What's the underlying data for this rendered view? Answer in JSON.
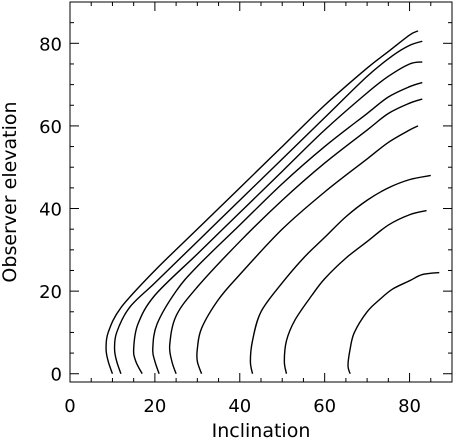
{
  "chart_data": {
    "type": "line",
    "title": "",
    "xlabel": "Inclination",
    "ylabel": "Observer elevation",
    "xlim": [
      0,
      90
    ],
    "ylim": [
      -2,
      90
    ],
    "xticks": [
      0,
      20,
      40,
      60,
      80
    ],
    "yticks": [
      0,
      20,
      40,
      60,
      80
    ],
    "grid": false,
    "legend": "none",
    "line_color": "#000000",
    "series": [
      {
        "points": [
          [
            10,
            0
          ],
          [
            9,
            3
          ],
          [
            8.5,
            6
          ],
          [
            9,
            10
          ],
          [
            12,
            16
          ],
          [
            20,
            25
          ],
          [
            30,
            35
          ],
          [
            40,
            45
          ],
          [
            50,
            55
          ],
          [
            60,
            65
          ],
          [
            70,
            74
          ],
          [
            75,
            78
          ],
          [
            80,
            82
          ],
          [
            82,
            83
          ]
        ]
      },
      {
        "points": [
          [
            12,
            0
          ],
          [
            11,
            3
          ],
          [
            10.5,
            6
          ],
          [
            11,
            10
          ],
          [
            14,
            16
          ],
          [
            20,
            22
          ],
          [
            30,
            32
          ],
          [
            40,
            42
          ],
          [
            50,
            52
          ],
          [
            60,
            62
          ],
          [
            70,
            72
          ],
          [
            76,
            77
          ],
          [
            80,
            79.5
          ],
          [
            83,
            80.5
          ]
        ]
      },
      {
        "points": [
          [
            17,
            0
          ],
          [
            15.5,
            3
          ],
          [
            15,
            6
          ],
          [
            16,
            12
          ],
          [
            20,
            19
          ],
          [
            30,
            29
          ],
          [
            40,
            39
          ],
          [
            50,
            49
          ],
          [
            60,
            59
          ],
          [
            70,
            68
          ],
          [
            75,
            72
          ],
          [
            80,
            75
          ],
          [
            83,
            75.5
          ]
        ]
      },
      {
        "points": [
          [
            21,
            0
          ],
          [
            20,
            3
          ],
          [
            19.5,
            6
          ],
          [
            20.5,
            12
          ],
          [
            25,
            20
          ],
          [
            30,
            26
          ],
          [
            40,
            36
          ],
          [
            50,
            46
          ],
          [
            60,
            55
          ],
          [
            70,
            63
          ],
          [
            75,
            67
          ],
          [
            80,
            69.5
          ],
          [
            83,
            70.5
          ]
        ]
      },
      {
        "points": [
          [
            25,
            0
          ],
          [
            24,
            3
          ],
          [
            23.5,
            7
          ],
          [
            25,
            14
          ],
          [
            30,
            21
          ],
          [
            40,
            32
          ],
          [
            50,
            42
          ],
          [
            60,
            51
          ],
          [
            70,
            59
          ],
          [
            75,
            63
          ],
          [
            80,
            65.5
          ],
          [
            83,
            66.5
          ]
        ]
      },
      {
        "points": [
          [
            31,
            0
          ],
          [
            30,
            3
          ],
          [
            30,
            6
          ],
          [
            31,
            11
          ],
          [
            35,
            18
          ],
          [
            40,
            24
          ],
          [
            50,
            35
          ],
          [
            60,
            44
          ],
          [
            70,
            52
          ],
          [
            75,
            56
          ],
          [
            80,
            59
          ],
          [
            82,
            60
          ]
        ]
      },
      {
        "points": [
          [
            43,
            0
          ],
          [
            42.5,
            3
          ],
          [
            43,
            8
          ],
          [
            45,
            15
          ],
          [
            50,
            22
          ],
          [
            55,
            28
          ],
          [
            60,
            33
          ],
          [
            65,
            38
          ],
          [
            70,
            42
          ],
          [
            75,
            45
          ],
          [
            80,
            47
          ],
          [
            85,
            48
          ]
        ]
      },
      {
        "points": [
          [
            51,
            0
          ],
          [
            50.5,
            3
          ],
          [
            51,
            8
          ],
          [
            53,
            13
          ],
          [
            57,
            19
          ],
          [
            60,
            23
          ],
          [
            65,
            28
          ],
          [
            70,
            32
          ],
          [
            75,
            36
          ],
          [
            80,
            38.5
          ],
          [
            84,
            39.5
          ]
        ]
      },
      {
        "points": [
          [
            66,
            0
          ],
          [
            65.5,
            2
          ],
          [
            66,
            6
          ],
          [
            67,
            10
          ],
          [
            70,
            15
          ],
          [
            73,
            18
          ],
          [
            76,
            20.5
          ],
          [
            80,
            22.5
          ],
          [
            83,
            24
          ],
          [
            87,
            24.5
          ]
        ]
      }
    ]
  }
}
